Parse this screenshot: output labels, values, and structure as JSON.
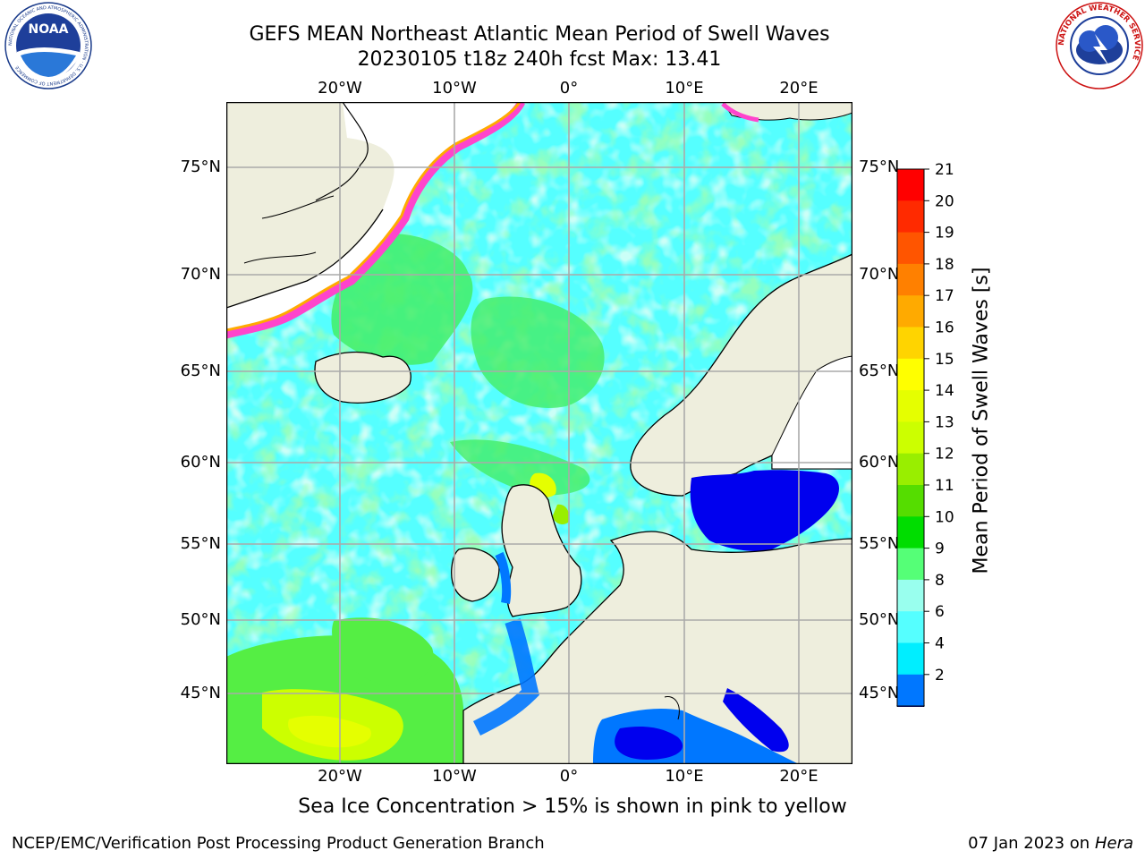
{
  "header": {
    "title_line1": "GEFS MEAN Northeast Atlantic Mean Period of Swell Waves",
    "title_line2": "20230105 t18z 240h fcst   Max: 13.41"
  },
  "logos": {
    "left": "NOAA",
    "left_ring": "NATIONAL OCEANIC AND ATMOSPHERIC ADMINISTRATION · U.S. DEPARTMENT OF COMMERCE",
    "right_ring": "NATIONAL WEATHER SERVICE"
  },
  "map": {
    "lon_labels": [
      "20°W",
      "10°W",
      "0°",
      "10°E",
      "20°E"
    ],
    "lat_labels": [
      "75°N",
      "70°N",
      "65°N",
      "60°N",
      "55°N",
      "50°N",
      "45°N"
    ]
  },
  "colorbar": {
    "title": "Mean Period of Swell Waves [s]",
    "ticks": [
      "21",
      "20",
      "19",
      "18",
      "17",
      "16",
      "15",
      "14",
      "13",
      "12",
      "11",
      "10",
      "9",
      "8",
      "6",
      "4",
      "2"
    ],
    "colors": [
      "#ff0000",
      "#ff2a00",
      "#ff5500",
      "#ff8000",
      "#ffaa00",
      "#ffd400",
      "#ffff00",
      "#e5ff00",
      "#ccff00",
      "#99ee00",
      "#55dd00",
      "#00dd00",
      "#55ff77",
      "#99ffee",
      "#55ffff",
      "#00eeff",
      "#0077ff"
    ],
    "extend_color": "#0000ee"
  },
  "caption": "Sea Ice Concentration > 15% is shown in pink to yellow",
  "footer": {
    "left": "NCEP/EMC/Verification Post Processing Product Generation Branch",
    "right_date": "07 Jan 2023 on",
    "right_host": "Hera"
  }
}
